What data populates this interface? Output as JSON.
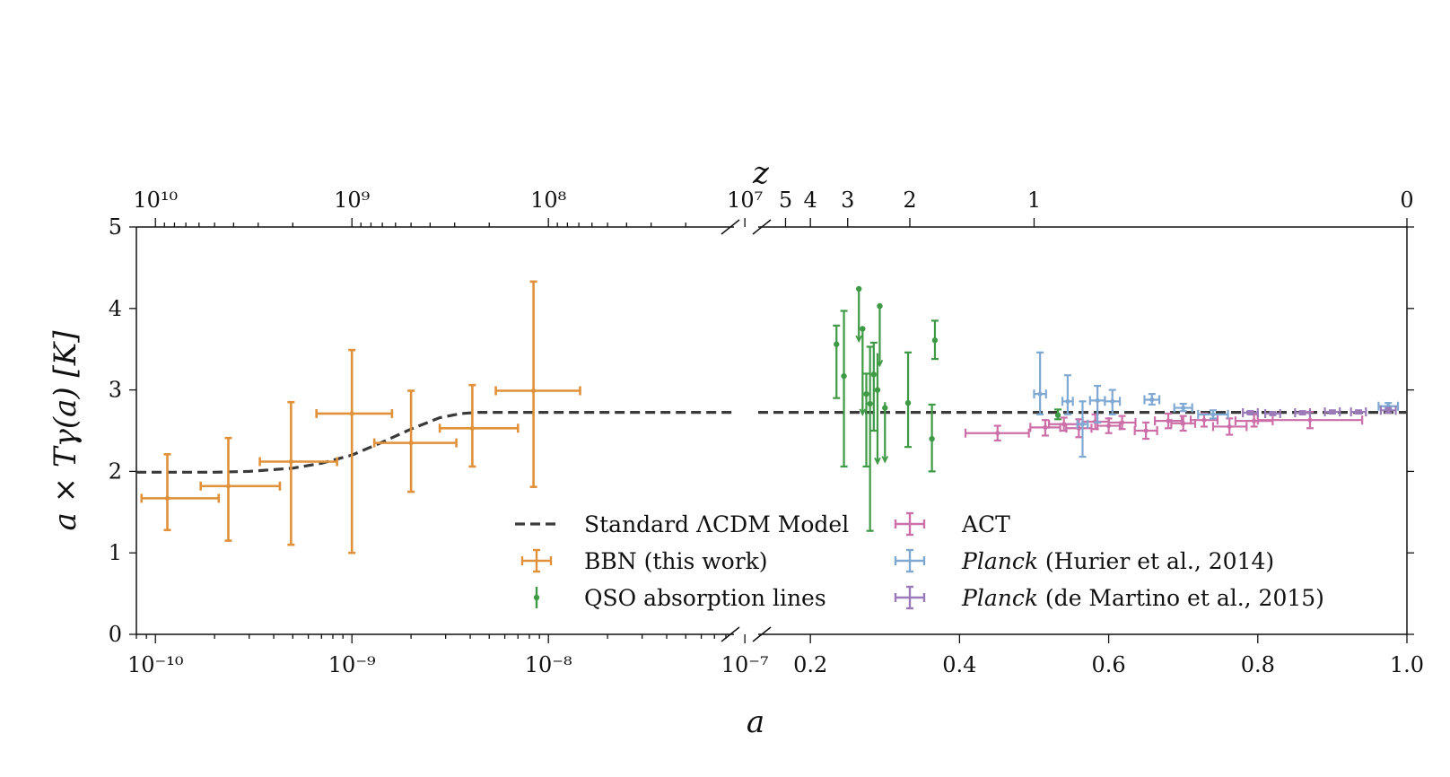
{
  "chart_data": {
    "type": "scatter",
    "xlabel": "a",
    "ylabel": "a × Tγ(a) [K]",
    "top_axis_label": "z",
    "ylim": [
      0,
      5
    ],
    "y_ticks": [
      "0",
      "1",
      "2",
      "3",
      "4",
      "5"
    ],
    "panels": [
      {
        "name": "early-universe",
        "x_scale": "log",
        "xlim": [
          8e-11,
          8.8e-08
        ],
        "x_ticks": [
          {
            "value": 1e-10,
            "label": "10⁻¹⁰"
          },
          {
            "value": 1e-09,
            "label": "10⁻⁹"
          },
          {
            "value": 1e-08,
            "label": "10⁻⁸"
          },
          {
            "value": 1e-07,
            "label": "10⁻⁷"
          }
        ],
        "z_ticks": [
          {
            "value": 10000000000.0,
            "label": "10¹⁰"
          },
          {
            "value": 1000000000.0,
            "label": "10⁹"
          },
          {
            "value": 100000000.0,
            "label": "10⁸"
          },
          {
            "value": 10000000.0,
            "label": "10⁷"
          }
        ]
      },
      {
        "name": "late-universe",
        "x_scale": "linear",
        "xlim": [
          0.13,
          1.0
        ],
        "x_ticks": [
          {
            "value": 0.2,
            "label": "0.2"
          },
          {
            "value": 0.4,
            "label": "0.4"
          },
          {
            "value": 0.6,
            "label": "0.6"
          },
          {
            "value": 0.8,
            "label": "0.8"
          },
          {
            "value": 1.0,
            "label": "1.0"
          }
        ],
        "z_ticks": [
          {
            "value": 5,
            "label": "5"
          },
          {
            "value": 4,
            "label": "4"
          },
          {
            "value": 3,
            "label": "3"
          },
          {
            "value": 2,
            "label": "2"
          },
          {
            "value": 1,
            "label": "1"
          },
          {
            "value": 0,
            "label": "0"
          }
        ]
      }
    ],
    "series": [
      {
        "name": "Standard ΛCDM Model",
        "kind": "line",
        "color": "#3a3a3a",
        "dash": true,
        "early": {
          "x": [
            8e-11,
            1.2e-10,
            2e-10,
            3e-10,
            5e-10,
            7e-10,
            1e-09,
            1.4e-09,
            2e-09,
            2.8e-09,
            3.6e-09,
            4.4e-09,
            6e-09,
            1e-08,
            8.8e-08
          ],
          "y": [
            1.99,
            1.99,
            1.99,
            2.0,
            2.04,
            2.1,
            2.2,
            2.35,
            2.52,
            2.66,
            2.71,
            2.725,
            2.725,
            2.725,
            2.725
          ]
        },
        "late": {
          "x": [
            0.13,
            1.0
          ],
          "y": [
            2.725,
            2.725
          ]
        }
      },
      {
        "name": "BBN (this work)",
        "kind": "errorbar",
        "panel": "early-universe",
        "color": "#e0913a",
        "points": [
          {
            "x": 1.15e-10,
            "xlo": 8.5e-11,
            "xhi": 2.1e-10,
            "y": 1.67,
            "ylo": 1.28,
            "yhi": 2.21
          },
          {
            "x": 2.35e-10,
            "xlo": 1.7e-10,
            "xhi": 4.3e-10,
            "y": 1.82,
            "ylo": 1.15,
            "yhi": 2.41
          },
          {
            "x": 4.9e-10,
            "xlo": 3.4e-10,
            "xhi": 8.4e-10,
            "y": 2.12,
            "ylo": 1.1,
            "yhi": 2.85
          },
          {
            "x": 1e-09,
            "xlo": 6.6e-10,
            "xhi": 1.6e-09,
            "y": 2.71,
            "ylo": 1.0,
            "yhi": 3.49
          },
          {
            "x": 2e-09,
            "xlo": 1.3e-09,
            "xhi": 3.4e-09,
            "y": 2.35,
            "ylo": 1.75,
            "yhi": 2.99
          },
          {
            "x": 4.1e-09,
            "xlo": 2.8e-09,
            "xhi": 7e-09,
            "y": 2.53,
            "ylo": 2.06,
            "yhi": 3.06
          },
          {
            "x": 8.4e-09,
            "xlo": 5.4e-09,
            "xhi": 1.45e-08,
            "y": 2.99,
            "ylo": 1.81,
            "yhi": 4.33
          }
        ]
      },
      {
        "name": "QSO absorption lines",
        "kind": "errorbar",
        "panel": "late-universe",
        "color": "#3f9a45",
        "points": [
          {
            "x": 0.235,
            "y": 3.56,
            "ylo": 2.9,
            "yhi": 3.79
          },
          {
            "x": 0.245,
            "y": 3.17,
            "ylo": 2.06,
            "yhi": 3.97
          },
          {
            "x": 0.265,
            "y": 4.24,
            "ylo": 3.6,
            "yhi": 4.24,
            "upper_limit": true
          },
          {
            "x": 0.27,
            "y": 3.75,
            "ylo": 2.7,
            "yhi": 3.75,
            "upper_limit": true
          },
          {
            "x": 0.275,
            "y": 2.95,
            "ylo": 2.06,
            "yhi": 3.2
          },
          {
            "x": 0.28,
            "y": 2.83,
            "ylo": 1.27,
            "yhi": 3.53
          },
          {
            "x": 0.285,
            "y": 3.19,
            "ylo": 2.5,
            "yhi": 3.58
          },
          {
            "x": 0.29,
            "y": 3.0,
            "ylo": 2.1,
            "yhi": 3.45,
            "upper_limit": true
          },
          {
            "x": 0.293,
            "y": 4.03,
            "ylo": 3.3,
            "yhi": 4.03,
            "upper_limit": true
          },
          {
            "x": 0.3,
            "y": 2.78,
            "ylo": 2.12,
            "yhi": 2.85,
            "upper_limit": true
          },
          {
            "x": 0.331,
            "y": 2.84,
            "ylo": 2.3,
            "yhi": 3.46
          },
          {
            "x": 0.363,
            "y": 2.4,
            "ylo": 2.0,
            "yhi": 2.82
          },
          {
            "x": 0.367,
            "y": 3.61,
            "ylo": 3.38,
            "yhi": 3.85
          },
          {
            "x": 0.532,
            "y": 2.69,
            "ylo": 2.64,
            "yhi": 2.76
          }
        ]
      },
      {
        "name": "ACT",
        "kind": "errorbar",
        "panel": "late-universe",
        "color": "#cc6fa9",
        "points": [
          {
            "x": 0.451,
            "xlo": 0.408,
            "xhi": 0.493,
            "y": 2.47,
            "ylo": 2.38,
            "yhi": 2.56
          },
          {
            "x": 0.515,
            "xlo": 0.495,
            "xhi": 0.535,
            "y": 2.54,
            "ylo": 2.44,
            "yhi": 2.63
          },
          {
            "x": 0.54,
            "xlo": 0.52,
            "xhi": 0.56,
            "y": 2.58,
            "ylo": 2.5,
            "yhi": 2.66
          },
          {
            "x": 0.56,
            "xlo": 0.543,
            "xhi": 0.577,
            "y": 2.53,
            "ylo": 2.42,
            "yhi": 2.64
          },
          {
            "x": 0.582,
            "xlo": 0.565,
            "xhi": 0.6,
            "y": 2.61,
            "ylo": 2.52,
            "yhi": 2.7
          },
          {
            "x": 0.6,
            "xlo": 0.585,
            "xhi": 0.615,
            "y": 2.56,
            "ylo": 2.47,
            "yhi": 2.65
          },
          {
            "x": 0.618,
            "xlo": 0.6,
            "xhi": 0.636,
            "y": 2.6,
            "ylo": 2.52,
            "yhi": 2.68
          },
          {
            "x": 0.65,
            "xlo": 0.635,
            "xhi": 0.665,
            "y": 2.5,
            "ylo": 2.4,
            "yhi": 2.6
          },
          {
            "x": 0.68,
            "xlo": 0.662,
            "xhi": 0.698,
            "y": 2.62,
            "ylo": 2.53,
            "yhi": 2.71
          },
          {
            "x": 0.7,
            "xlo": 0.684,
            "xhi": 0.716,
            "y": 2.59,
            "ylo": 2.5,
            "yhi": 2.68
          },
          {
            "x": 0.728,
            "xlo": 0.71,
            "xhi": 0.746,
            "y": 2.63,
            "ylo": 2.55,
            "yhi": 2.71
          },
          {
            "x": 0.762,
            "xlo": 0.74,
            "xhi": 0.785,
            "y": 2.55,
            "ylo": 2.45,
            "yhi": 2.65
          },
          {
            "x": 0.795,
            "xlo": 0.77,
            "xhi": 0.82,
            "y": 2.62,
            "ylo": 2.55,
            "yhi": 2.7
          },
          {
            "x": 0.87,
            "xlo": 0.8,
            "xhi": 0.94,
            "y": 2.63,
            "ylo": 2.53,
            "yhi": 2.73
          }
        ]
      },
      {
        "name": "Planck (Hurier et al., 2014)",
        "name_italic": "Planck",
        "name_rest": " (Hurier et al., 2014)",
        "kind": "errorbar",
        "panel": "late-universe",
        "color": "#7fa9d3",
        "points": [
          {
            "x": 0.508,
            "xlo": 0.5,
            "xhi": 0.516,
            "y": 2.95,
            "ylo": 2.7,
            "yhi": 3.46
          },
          {
            "x": 0.545,
            "xlo": 0.538,
            "xhi": 0.552,
            "y": 2.86,
            "ylo": 2.7,
            "yhi": 3.18
          },
          {
            "x": 0.565,
            "xlo": 0.558,
            "xhi": 0.572,
            "y": 2.58,
            "ylo": 2.18,
            "yhi": 2.86
          },
          {
            "x": 0.585,
            "xlo": 0.575,
            "xhi": 0.595,
            "y": 2.87,
            "ylo": 2.6,
            "yhi": 3.05
          },
          {
            "x": 0.605,
            "xlo": 0.595,
            "xhi": 0.615,
            "y": 2.86,
            "ylo": 2.7,
            "yhi": 3.0
          },
          {
            "x": 0.658,
            "xlo": 0.648,
            "xhi": 0.668,
            "y": 2.88,
            "ylo": 2.82,
            "yhi": 2.95
          },
          {
            "x": 0.7,
            "xlo": 0.688,
            "xhi": 0.712,
            "y": 2.78,
            "ylo": 2.74,
            "yhi": 2.83
          },
          {
            "x": 0.74,
            "xlo": 0.72,
            "xhi": 0.76,
            "y": 2.7,
            "ylo": 2.65,
            "yhi": 2.75
          },
          {
            "x": 0.975,
            "xlo": 0.962,
            "xhi": 0.988,
            "y": 2.8,
            "ylo": 2.76,
            "yhi": 2.84
          }
        ]
      },
      {
        "name": "Planck (de Martino et al., 2015)",
        "name_italic": "Planck",
        "name_rest": " (de Martino et al., 2015)",
        "kind": "errorbar",
        "panel": "late-universe",
        "color": "#9b7ab8",
        "points": [
          {
            "x": 0.79,
            "xlo": 0.78,
            "xhi": 0.8,
            "y": 2.72,
            "ylo": 2.7,
            "yhi": 2.74
          },
          {
            "x": 0.82,
            "xlo": 0.81,
            "xhi": 0.83,
            "y": 2.71,
            "ylo": 2.69,
            "yhi": 2.73
          },
          {
            "x": 0.86,
            "xlo": 0.85,
            "xhi": 0.87,
            "y": 2.72,
            "ylo": 2.7,
            "yhi": 2.74
          },
          {
            "x": 0.9,
            "xlo": 0.89,
            "xhi": 0.91,
            "y": 2.73,
            "ylo": 2.71,
            "yhi": 2.75
          },
          {
            "x": 0.935,
            "xlo": 0.925,
            "xhi": 0.945,
            "y": 2.73,
            "ylo": 2.71,
            "yhi": 2.75
          },
          {
            "x": 0.975,
            "xlo": 0.965,
            "xhi": 0.985,
            "y": 2.75,
            "ylo": 2.72,
            "yhi": 2.78
          }
        ]
      }
    ]
  }
}
